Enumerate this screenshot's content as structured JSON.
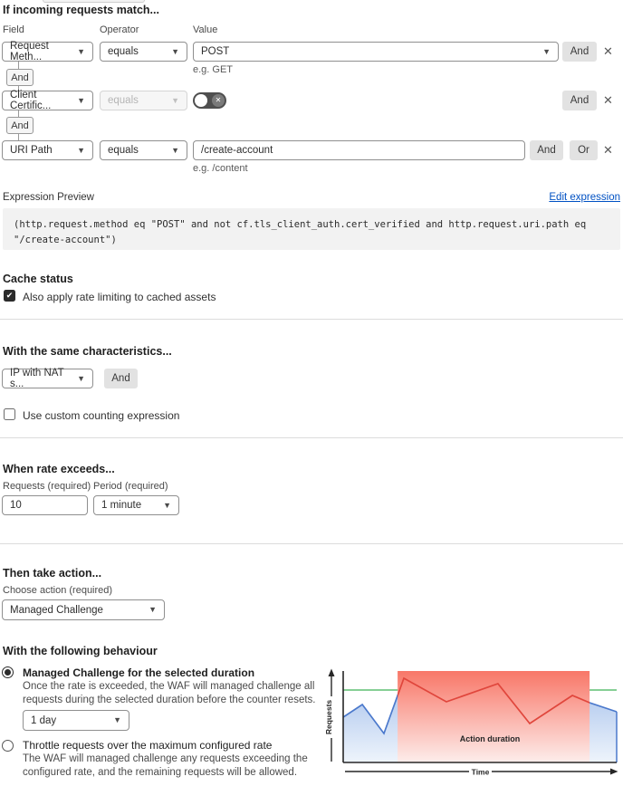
{
  "match": {
    "heading": "If incoming requests match...",
    "col_labels": {
      "field": "Field",
      "operator": "Operator",
      "value": "Value"
    },
    "connector": "And",
    "rows": [
      {
        "field": "Request Meth...",
        "operator": "equals",
        "value": "POST",
        "helper": "e.g. GET",
        "and": "And"
      },
      {
        "field": "Client Certific...",
        "operator": "equals",
        "and": "And"
      },
      {
        "field": "URI Path",
        "operator": "equals",
        "value": "/create-account",
        "helper": "e.g. /content",
        "and": "And",
        "or": "Or"
      }
    ]
  },
  "expression": {
    "label": "Expression Preview",
    "edit_link": "Edit expression",
    "code": "(http.request.method eq \"POST\" and not cf.tls_client_auth.cert_verified and http.request.uri.path eq \"/create-account\")"
  },
  "cache": {
    "heading": "Cache status",
    "checkbox_label": "Also apply rate limiting to cached assets",
    "checked": true
  },
  "characteristics": {
    "heading": "With the same characteristics...",
    "select_value": "IP with NAT s...",
    "and_button": "And",
    "checkbox_label": "Use custom counting expression",
    "checked": false
  },
  "rate": {
    "heading": "When rate exceeds...",
    "requests_label": "Requests (required)",
    "period_label": "Period (required)",
    "requests_value": "10",
    "period_value": "1 minute"
  },
  "action": {
    "heading": "Then take action...",
    "choose_label": "Choose action (required)",
    "value": "Managed Challenge"
  },
  "behaviour": {
    "heading": "With the following behaviour",
    "options": [
      {
        "title": "Managed Challenge for the selected duration",
        "description": "Once the rate is exceeded, the WAF will managed challenge all requests during the selected duration before the counter resets.",
        "duration_value": "1 day",
        "selected": true
      },
      {
        "title": "Throttle requests over the maximum configured rate",
        "description": "The WAF will managed challenge any requests exceeding the configured rate, and the remaining requests will be allowed.",
        "selected": false
      }
    ]
  },
  "chart_data": {
    "type": "line",
    "title": "",
    "xlabel": "Time",
    "ylabel": "Requests",
    "annotation": "Action duration",
    "x": [
      0,
      7,
      14.9,
      22.2,
      37.7,
      56.6,
      68.2,
      83.8,
      90.1,
      100
    ],
    "y": [
      49.5,
      63.4,
      31.7,
      92.1,
      66.3,
      86.1,
      42.6,
      73.3,
      65.3,
      55.4
    ],
    "threshold": 79.2,
    "action_region": [
      19.9,
      90.1
    ],
    "xlim": [
      0,
      100
    ],
    "ylim": [
      0,
      100
    ],
    "grid": false,
    "legend": false,
    "colors": {
      "line_normal": "#4b79cc",
      "line_action": "#e0463c",
      "threshold": "#5fbf72",
      "region_top": "#f87768",
      "region_bottom": "#fdedeb",
      "fill_top": "#a6c1eb",
      "fill_bottom": "#eef4fc",
      "axis": "#262626"
    }
  }
}
